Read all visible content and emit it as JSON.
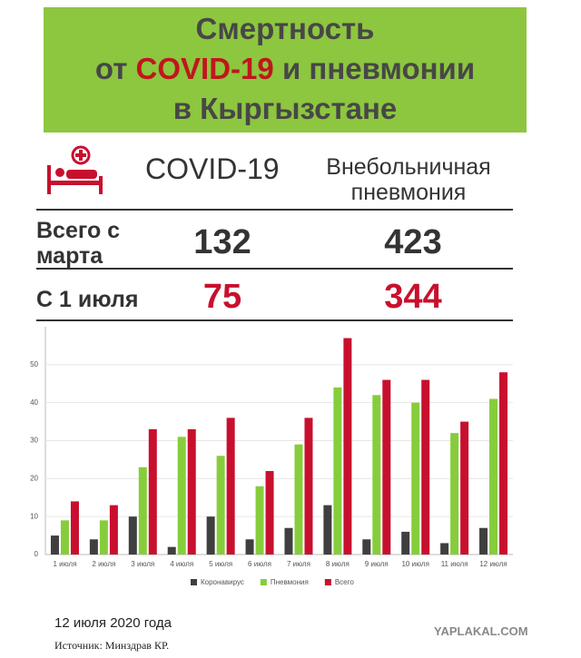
{
  "header": {
    "title": [
      "Смертность",
      "от",
      "COVID-19",
      "и пневмонии",
      "в Кыргызстане"
    ]
  },
  "table": {
    "columns": [
      "COVID-19",
      "Внебольничная пневмония"
    ],
    "rows": [
      [
        "Всего с марта",
        "132",
        "423"
      ],
      [
        "С 1 июля",
        "75",
        "344"
      ]
    ]
  },
  "chart_data": {
    "type": "bar",
    "categories": [
      "1 июля",
      "2 июля",
      "3 июля",
      "4 июля",
      "5 июля",
      "6 июля",
      "7 июля",
      "8 июля",
      "9 июля",
      "10 июля",
      "11 июля",
      "12 июля"
    ],
    "series": [
      {
        "name": "Коронавирус",
        "color": "#3f3f3f",
        "values": [
          5,
          4,
          10,
          2,
          10,
          4,
          7,
          13,
          4,
          6,
          3,
          7
        ]
      },
      {
        "name": "Пневмония",
        "color": "#86cd3c",
        "values": [
          9,
          9,
          23,
          31,
          26,
          18,
          29,
          44,
          42,
          40,
          32,
          41
        ]
      },
      {
        "name": "Всего",
        "color": "#c8102e",
        "values": [
          14,
          13,
          33,
          33,
          36,
          22,
          36,
          57,
          46,
          46,
          35,
          48
        ]
      }
    ],
    "ylim": [
      0,
      60
    ],
    "yticks": [
      0,
      10,
      20,
      30,
      40,
      50
    ],
    "grid": true,
    "legend": "bottom"
  },
  "footer": {
    "date": "12 июля 2020 года",
    "source": "Источник: Минздрав КР.",
    "watermark": "YAPLAKAL.COM"
  }
}
